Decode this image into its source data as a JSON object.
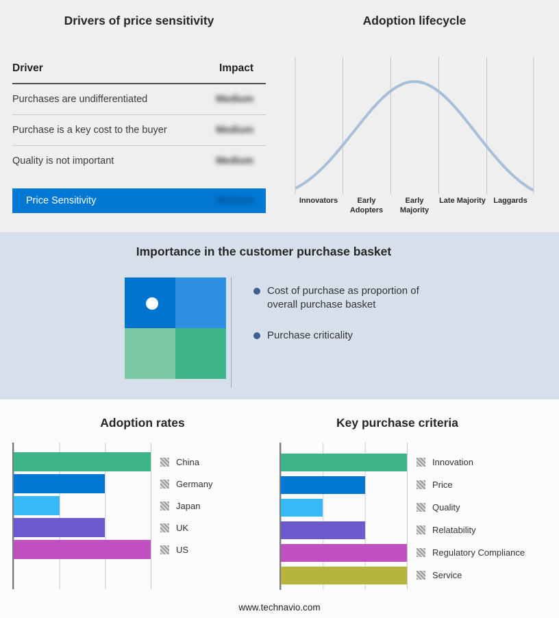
{
  "colors": {
    "accent_blue": "#0078d4",
    "top_band_bg": "#efefef",
    "mid_band_bg": "#d7e0ea"
  },
  "drivers_panel": {
    "title": "Drivers of price sensitivity",
    "columns": {
      "driver": "Driver",
      "impact": "Impact"
    },
    "rows": [
      {
        "driver": "Purchases are undifferentiated",
        "impact": "Medium",
        "impact_obscured": true
      },
      {
        "driver": "Purchase is a key cost to the buyer",
        "impact": "Medium",
        "impact_obscured": true
      },
      {
        "driver": "Quality is not important",
        "impact": "Medium",
        "impact_obscured": true
      }
    ],
    "summary_row": {
      "label": "Price Sensitivity",
      "impact": "Medium",
      "impact_obscured": true
    }
  },
  "lifecycle_panel": {
    "title": "Adoption lifecycle"
  },
  "basket_panel": {
    "title": "Importance in the customer purchase basket",
    "bullets": [
      "Cost of purchase as proportion of overall purchase basket",
      "Purchase criticality"
    ],
    "quadrant_colors": [
      "#0074cf",
      "#2f8fe2",
      "#7cc8a3",
      "#3eb489"
    ]
  },
  "footer": {
    "url": "www.technavio.com"
  },
  "chart_data": [
    {
      "type": "bar",
      "orientation": "horizontal",
      "title": "Adoption rates",
      "categories": [
        "China",
        "Germany",
        "Japan",
        "UK",
        "US"
      ],
      "values": [
        3,
        2,
        1,
        2,
        3
      ],
      "colors": [
        "#3eb489",
        "#0078d4",
        "#35baf6",
        "#6a5acd",
        "#c050c0"
      ],
      "xlim": [
        0,
        3
      ],
      "grid": true,
      "legend_position": "right"
    },
    {
      "type": "bar",
      "orientation": "horizontal",
      "title": "Key purchase criteria",
      "categories": [
        "Innovation",
        "Price",
        "Quality",
        "Relatability",
        "Regulatory Compliance",
        "Service"
      ],
      "values": [
        3,
        2,
        1,
        2,
        3,
        3
      ],
      "colors": [
        "#3eb489",
        "#0078d4",
        "#35baf6",
        "#6a5acd",
        "#c050c0",
        "#b5b43c"
      ],
      "xlim": [
        0,
        3
      ],
      "grid": true,
      "legend_position": "right"
    },
    {
      "type": "line",
      "shape": "bell-curve",
      "title": "Adoption lifecycle",
      "categories": [
        "Innovators",
        "Early Adopters",
        "Early Majority",
        "Late Majority",
        "Laggards"
      ],
      "color": "#a9bed9"
    }
  ]
}
